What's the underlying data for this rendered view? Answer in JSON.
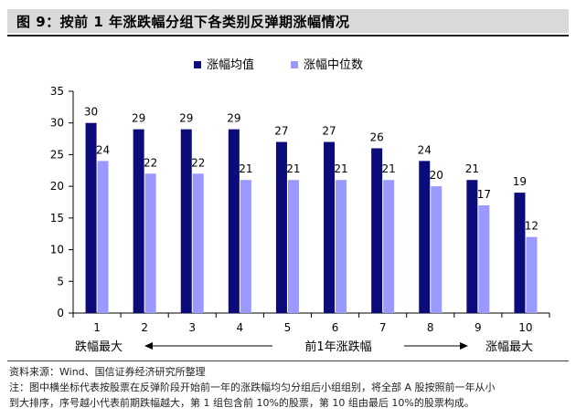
{
  "figure": {
    "title": "图 9：按前 1 年涨跌幅分组下各类别反弹期涨幅情况",
    "source": "资料来源：Wind、国信证券经济研究所整理",
    "note_line1": "注：图中横坐标代表按股票在反弹阶段开始前一年的涨跌幅均匀分组后小组组别，将全部 A 股按照前一年从小",
    "note_line2": "到大排序，序号越小代表前期跌幅越大，第 1 组包含前 10%的股票，第 10 组由最后 10%的股票构成。"
  },
  "colors": {
    "series_mean": "#0b0b7a",
    "series_median": "#9999ff",
    "axis": "#000000"
  },
  "chart_data": {
    "type": "bar",
    "categories": [
      "1",
      "2",
      "3",
      "4",
      "5",
      "6",
      "7",
      "8",
      "9",
      "10"
    ],
    "series": [
      {
        "name": "涨幅均值",
        "values": [
          30,
          29,
          29,
          29,
          27,
          27,
          26,
          24,
          21,
          19
        ],
        "data_labels": [
          "30",
          "29",
          "29",
          "29",
          "27",
          "27",
          "26",
          "24",
          "21",
          "19"
        ]
      },
      {
        "name": "涨幅中位数",
        "values": [
          24,
          22,
          22,
          21,
          21,
          21,
          21,
          20,
          17,
          12
        ],
        "data_labels": [
          "24",
          "22",
          "22",
          "21",
          "21",
          "21",
          "21",
          "20",
          "17",
          "12"
        ]
      }
    ],
    "ylim": [
      0,
      35
    ],
    "yticks": [
      "0",
      "5",
      "10",
      "15",
      "20",
      "25",
      "30",
      "35"
    ],
    "legend_position": "top-center",
    "grid": false,
    "x_annotations": {
      "left": "跌幅最大",
      "center": "前1年涨跌幅",
      "right": "涨幅最大"
    }
  }
}
